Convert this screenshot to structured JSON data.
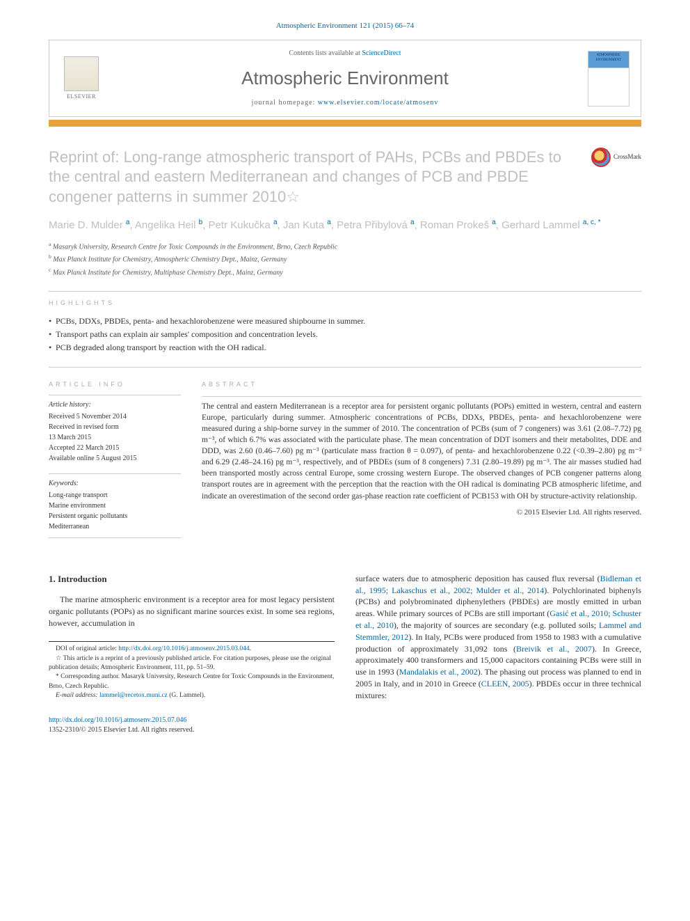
{
  "citation": "Atmospheric Environment 121 (2015) 66–74",
  "header": {
    "contents_prefix": "Contents lists available at ",
    "contents_link": "ScienceDirect",
    "journal": "Atmospheric Environment",
    "homepage_prefix": "journal homepage: ",
    "homepage_link": "www.elsevier.com/locate/atmosenv",
    "elsevier": "ELSEVIER",
    "cover_label": "ATMOSPHERIC ENVIRONMENT"
  },
  "crossmark": "CrossMark",
  "title": "Reprint of: Long-range atmospheric transport of PAHs, PCBs and PBDEs to the central and eastern Mediterranean and changes of PCB and PBDE congener patterns in summer 2010☆",
  "authors_html": "Marie D. Mulder <sup>a</sup>, Angelika Heil <sup>b</sup>, Petr Kukučka <sup>a</sup>, Jan Kuta <sup>a</sup>, Petra Přibylová <sup>a</sup>, Roman Prokeš <sup>a</sup>, Gerhard Lammel <sup>a, c, *</sup>",
  "affiliations": [
    {
      "sup": "a",
      "text": "Masaryk University, Research Centre for Toxic Compounds in the Environment, Brno, Czech Republic"
    },
    {
      "sup": "b",
      "text": "Max Planck Institute for Chemistry, Atmospheric Chemistry Dept., Mainz, Germany"
    },
    {
      "sup": "c",
      "text": "Max Planck Institute for Chemistry, Multiphase Chemistry Dept., Mainz, Germany"
    }
  ],
  "labels": {
    "highlights": "HIGHLIGHTS",
    "article_info": "ARTICLE INFO",
    "abstract": "ABSTRACT"
  },
  "highlights": [
    "PCBs, DDXs, PBDEs, penta- and hexachlorobenzene were measured shipbourne in summer.",
    "Transport paths can explain air samples' composition and concentration levels.",
    "PCB degraded along transport by reaction with the OH radical."
  ],
  "article_info": {
    "history_label": "Article history:",
    "history": [
      "Received 5 November 2014",
      "Received in revised form",
      "13 March 2015",
      "Accepted 22 March 2015",
      "Available online 5 August 2015"
    ],
    "keywords_label": "Keywords:",
    "keywords": [
      "Long-range transport",
      "Marine environment",
      "Persistent organic pollutants",
      "Mediterranean"
    ]
  },
  "abstract": "The central and eastern Mediterranean is a receptor area for persistent organic pollutants (POPs) emitted in western, central and eastern Europe, particularly during summer. Atmospheric concentrations of PCBs, DDXs, PBDEs, penta- and hexachlorobenzene were measured during a ship-borne survey in the summer of 2010. The concentration of PCBs (sum of 7 congeners) was 3.61 (2.08–7.72) pg m⁻³, of which 6.7% was associated with the particulate phase. The mean concentration of DDT isomers and their metabolites, DDE and DDD, was 2.60 (0.46–7.60) pg m⁻³ (particulate mass fraction θ = 0.097), of penta- and hexachlorobenzene 0.22 (<0.39–2.80) pg m⁻³ and 6.29 (2.48–24.16) pg m⁻³, respectively, and of PBDEs (sum of 8 congeners) 7.31 (2.80–19.89) pg m⁻³. The air masses studied had been transported mostly across central Europe, some crossing western Europe. The observed changes of PCB congener patterns along transport routes are in agreement with the perception that the reaction with the OH radical is dominating PCB atmospheric lifetime, and indicate an overestimation of the second order gas-phase reaction rate coefficient of PCB153 with OH by structure-activity relationship.",
  "copyright": "© 2015 Elsevier Ltd. All rights reserved.",
  "body": {
    "heading": "1. Introduction",
    "left_para": "The marine atmospheric environment is a receptor area for most legacy persistent organic pollutants (POPs) as no significant marine sources exist. In some sea regions, however, accumulation in",
    "right_para_parts": [
      "surface waters due to atmospheric deposition has caused flux reversal (",
      "Bidleman et al., 1995; Lakaschus et al., 2002; Mulder et al., 2014",
      "). Polychlorinated biphenyls (PCBs) and polybrominated diphenylethers (PBDEs) are mostly emitted in urban areas. While primary sources of PCBs are still important (",
      "Gasić et al., 2010; Schuster et al., 2010",
      "), the majority of sources are secondary (e.g. polluted soils; ",
      "Lammel and Stemmler, 2012",
      "). In Italy, PCBs were produced from 1958 to 1983 with a cumulative production of approximately 31,092 tons (",
      "Breivik et al., 2007",
      "). In Greece, approximately 400 transformers and 15,000 capacitors containing PCBs were still in use in 1993 (",
      "Mandalakis et al., 2002",
      "). The phasing out process was planned to end in 2005 in Italy, and in 2010 in Greece (",
      "CLEEN, 2005",
      "). PBDEs occur in three technical mixtures:"
    ]
  },
  "footnotes": {
    "doi_label": "DOI of original article: ",
    "doi_link": "http://dx.doi.org/10.1016/j.atmosenv.2015.03.044",
    "star": "☆ This article is a reprint of a previously published article. For citation purposes, please use the original publication details; Atmospheric Environment, 111, pp. 51–59.",
    "corr": "* Corresponding author. Masaryk University, Research Centre for Toxic Compounds in the Environment, Brno, Czech Republic.",
    "email_label": "E-mail address: ",
    "email": "lammel@recetox.muni.cz",
    "email_name": " (G. Lammel)."
  },
  "footer": {
    "doi": "http://dx.doi.org/10.1016/j.atmosenv.2015.07.046",
    "issn": "1352-2310/© 2015 Elsevier Ltd. All rights reserved."
  },
  "colors": {
    "link": "#0066a1",
    "accent_bar": "#e8a33d",
    "title_gray": "#bfbfbf",
    "label_gray": "#aaaaaa",
    "border": "#cccccc"
  }
}
